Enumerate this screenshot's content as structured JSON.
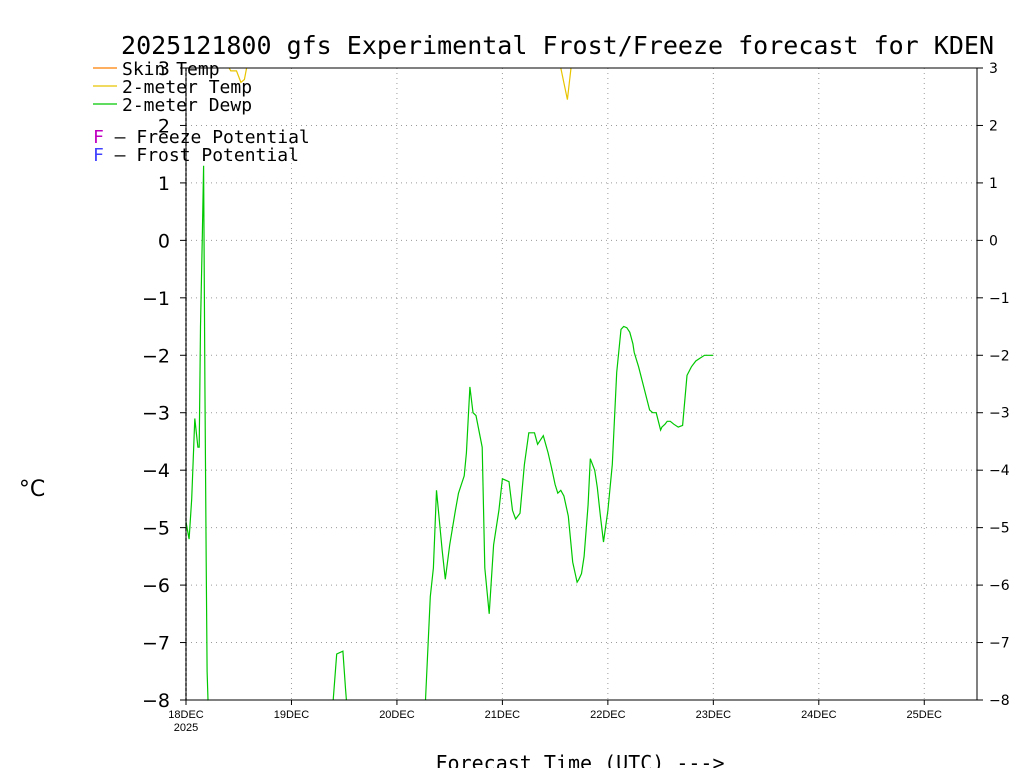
{
  "chart_data": {
    "type": "line",
    "title": "2025121800 gfs Experimental Frost/Freeze forecast for KDEN",
    "xlabel": "Forecast Time (UTC) --->",
    "ylabel": "°C",
    "ylim": [
      -8,
      3
    ],
    "xlim": [
      0,
      180
    ],
    "yticks": [
      3,
      2,
      1,
      0,
      -1,
      -2,
      -3,
      -4,
      -5,
      -6,
      -7,
      -8
    ],
    "ytick_labels_left": [
      "3",
      "2",
      "1",
      "0",
      "−1",
      "−2",
      "−3",
      "−4",
      "−5",
      "−6",
      "−7",
      "−8"
    ],
    "ytick_labels_right": [
      "3",
      "2",
      "1",
      "0",
      "−1",
      "−2",
      "−3",
      "−4",
      "−5",
      "−6",
      "−7",
      "−8"
    ],
    "xticks": [
      0,
      24,
      48,
      72,
      96,
      120,
      144,
      168
    ],
    "xtick_labels": [
      "18DEC",
      "19DEC",
      "20DEC",
      "21DEC",
      "22DEC",
      "23DEC",
      "24DEC",
      "25DEC"
    ],
    "year_label": "2025",
    "grid": true,
    "legend": [
      {
        "label": "Skin Temp",
        "color": "#ff7f00"
      },
      {
        "label": "2-meter Temp",
        "color": "#e8c400"
      },
      {
        "label": "2-meter Dewp",
        "color": "#00c800"
      }
    ],
    "legend2": [
      {
        "symbol": "F",
        "text": " – Freeze Potential",
        "color": "#c000c0"
      },
      {
        "symbol": "F",
        "text": " – Frost Potential",
        "color": "#4040ff"
      }
    ],
    "series": [
      {
        "name": "2-meter Dewp",
        "color": "#00c800",
        "x": [
          0,
          0.7,
          1.3,
          2,
          2.7,
          3,
          3.3,
          3.7,
          4,
          4.3,
          4.6,
          4.8,
          5,
          5.1
        ],
        "y": [
          -4.9,
          -5.2,
          -4.5,
          -3.1,
          -3.6,
          -3.6,
          -1.5,
          0.05,
          1.3,
          -2.5,
          -5.6,
          -7.5,
          -8.2,
          -8.2
        ]
      },
      {
        "name": "2-meter Dewp",
        "color": "#00c800",
        "x": [
          33.5,
          34.3,
          35.7,
          36.3,
          36.5
        ],
        "y": [
          -8.2,
          -7.2,
          -7.15,
          -7.8,
          -8.2
        ]
      },
      {
        "name": "2-meter Dewp",
        "color": "#00c800",
        "x": [
          54.5,
          55.6,
          56.3,
          57,
          58.3,
          59,
          60,
          61.3,
          62,
          63.3,
          63.8,
          64.6,
          65.3,
          66,
          67.4,
          68,
          69,
          70,
          71.2,
          72,
          73.5,
          74.3,
          75,
          76,
          77,
          78,
          79.3,
          80,
          81.3,
          82.4,
          83.3,
          84,
          84.6,
          85.3,
          86,
          87,
          88,
          89,
          89.4,
          90,
          90.6,
          91.5,
          92,
          93,
          93.6,
          94.3,
          95,
          96,
          97,
          98,
          99,
          99.6,
          100.3,
          101,
          101.7,
          102,
          103,
          104,
          105.5,
          106.2,
          107,
          108,
          108.3,
          109,
          109.5,
          110.2,
          111,
          112,
          113,
          114,
          115,
          116,
          117,
          118,
          119,
          120
        ],
        "y": [
          -8.2,
          -6.2,
          -5.7,
          -4.35,
          -5.4,
          -5.9,
          -5.3,
          -4.7,
          -4.4,
          -4.1,
          -3.7,
          -2.55,
          -3.0,
          -3.05,
          -3.6,
          -5.7,
          -6.5,
          -5.3,
          -4.7,
          -4.15,
          -4.2,
          -4.7,
          -4.85,
          -4.75,
          -3.9,
          -3.35,
          -3.35,
          -3.55,
          -3.4,
          -3.7,
          -4.0,
          -4.25,
          -4.4,
          -4.35,
          -4.45,
          -4.8,
          -5.6,
          -5.95,
          -5.9,
          -5.8,
          -5.5,
          -4.6,
          -3.8,
          -4.0,
          -4.3,
          -4.8,
          -5.25,
          -4.7,
          -3.9,
          -2.3,
          -1.55,
          -1.5,
          -1.52,
          -1.6,
          -1.8,
          -1.95,
          -2.2,
          -2.5,
          -2.95,
          -3.0,
          -3.0,
          -3.3,
          -3.25,
          -3.2,
          -3.15,
          -3.15,
          -3.2,
          -3.25,
          -3.22,
          -2.35,
          -2.2,
          -2.1,
          -2.05,
          -2.0,
          -2.0,
          -2.0
        ]
      },
      {
        "name": "2-meter Temp",
        "color": "#e8c400",
        "x": [
          85.3,
          86.8,
          87.6
        ],
        "y": [
          3.2,
          2.45,
          3.2
        ]
      },
      {
        "name": "2-meter Temp",
        "color": "#e8c400",
        "x": [
          9.8,
          10.2,
          11.5,
          12.5,
          13.3,
          13.8
        ],
        "y": [
          3.2,
          2.95,
          2.95,
          2.75,
          2.8,
          3.2
        ]
      }
    ]
  }
}
